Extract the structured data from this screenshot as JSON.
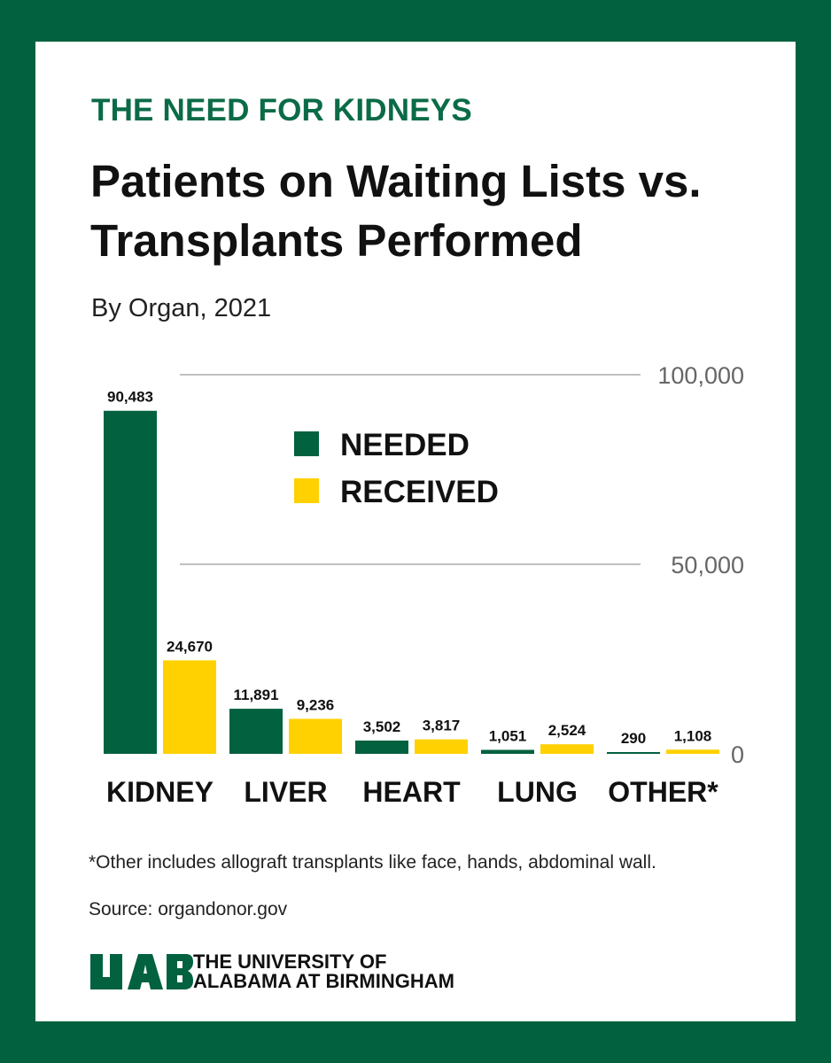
{
  "header": {
    "eyebrow": "THE NEED FOR KIDNEYS",
    "title": "Patients on Waiting Lists vs. Transplants Performed",
    "subtitle": "By Organ, 2021"
  },
  "colors": {
    "needed": "#02613f",
    "received": "#ffd100",
    "background": "#02613f"
  },
  "chart_data": {
    "type": "bar",
    "categories": [
      "KIDNEY",
      "LIVER",
      "HEART",
      "LUNG",
      "OTHER*"
    ],
    "series": [
      {
        "name": "NEEDED",
        "values": [
          90483,
          11891,
          3502,
          1051,
          290
        ],
        "labels": [
          "90,483",
          "11,891",
          "3,502",
          "1,051",
          "290"
        ]
      },
      {
        "name": "RECEIVED",
        "values": [
          24670,
          9236,
          3817,
          2524,
          1108
        ],
        "labels": [
          "24,670",
          "9,236",
          "3,817",
          "2,524",
          "1,108"
        ]
      }
    ],
    "yticks": [
      0,
      50000,
      100000
    ],
    "ytick_labels": [
      "0",
      "50,000",
      "100,000"
    ],
    "ylim": [
      0,
      100000
    ],
    "grid": true,
    "legend_position": "upper-center"
  },
  "footer": {
    "footnote": "*Other includes allograft transplants like face, hands, abdominal wall.",
    "source": "Source: organdonor.gov",
    "logo_mark": "UAB",
    "logo_line1": "THE UNIVERSITY OF",
    "logo_line2": "ALABAMA AT BIRMINGHAM"
  }
}
